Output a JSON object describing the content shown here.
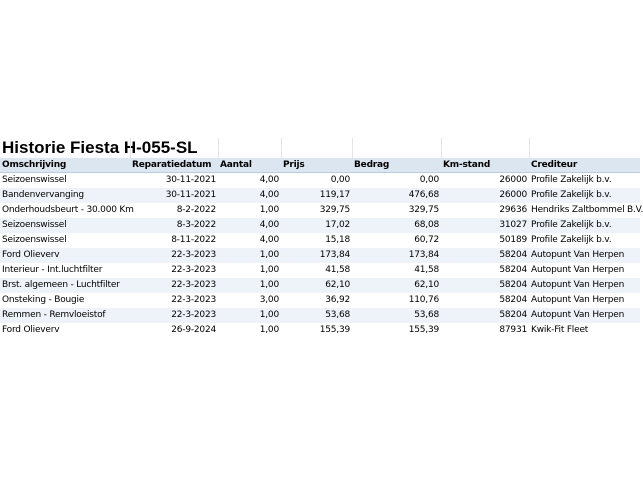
{
  "title": "Historie Fiesta H-055-SL",
  "table": {
    "header": [
      "Omschrijving",
      "Reparatiedatum",
      "Aantal",
      "Prijs",
      "Bedrag",
      "Km-stand",
      "Crediteur"
    ],
    "rows": [
      [
        "Seizoenswissel",
        "30-11-2021",
        "4,00",
        "0,00",
        "0,00",
        "26000",
        "Profile Zakelijk b.v."
      ],
      [
        "Bandenvervanging",
        "30-11-2021",
        "4,00",
        "119,17",
        "476,68",
        "26000",
        "Profile Zakelijk b.v."
      ],
      [
        "Onderhoudsbeurt - 30.000 Km",
        "8-2-2022",
        "1,00",
        "329,75",
        "329,75",
        "29636",
        "Hendriks Zaltbommel B.V."
      ],
      [
        "Seizoenswissel",
        "8-3-2022",
        "4,00",
        "17,02",
        "68,08",
        "31027",
        "Profile Zakelijk b.v."
      ],
      [
        "Seizoenswissel",
        "8-11-2022",
        "4,00",
        "15,18",
        "60,72",
        "50189",
        "Profile Zakelijk b.v."
      ],
      [
        "Ford Olieverv",
        "22-3-2023",
        "1,00",
        "173,84",
        "173,84",
        "58204",
        "Autopunt Van Herpen"
      ],
      [
        "Interieur - Int.luchtfilter",
        "22-3-2023",
        "1,00",
        "41,58",
        "41,58",
        "58204",
        "Autopunt Van Herpen"
      ],
      [
        "Brst. algemeen - Luchtfilter",
        "22-3-2023",
        "1,00",
        "62,10",
        "62,10",
        "58204",
        "Autopunt Van Herpen"
      ],
      [
        "Onsteking - Bougie",
        "22-3-2023",
        "3,00",
        "36,92",
        "110,76",
        "58204",
        "Autopunt Van Herpen"
      ],
      [
        "Remmen - Remvloeistof",
        "22-3-2023",
        "1,00",
        "53,68",
        "53,68",
        "58204",
        "Autopunt Van Herpen"
      ],
      [
        "Ford Olieverv",
        "26-9-2024",
        "1,00",
        "155,39",
        "155,39",
        "87931",
        "Kwik-Fit Fleet"
      ]
    ]
  }
}
